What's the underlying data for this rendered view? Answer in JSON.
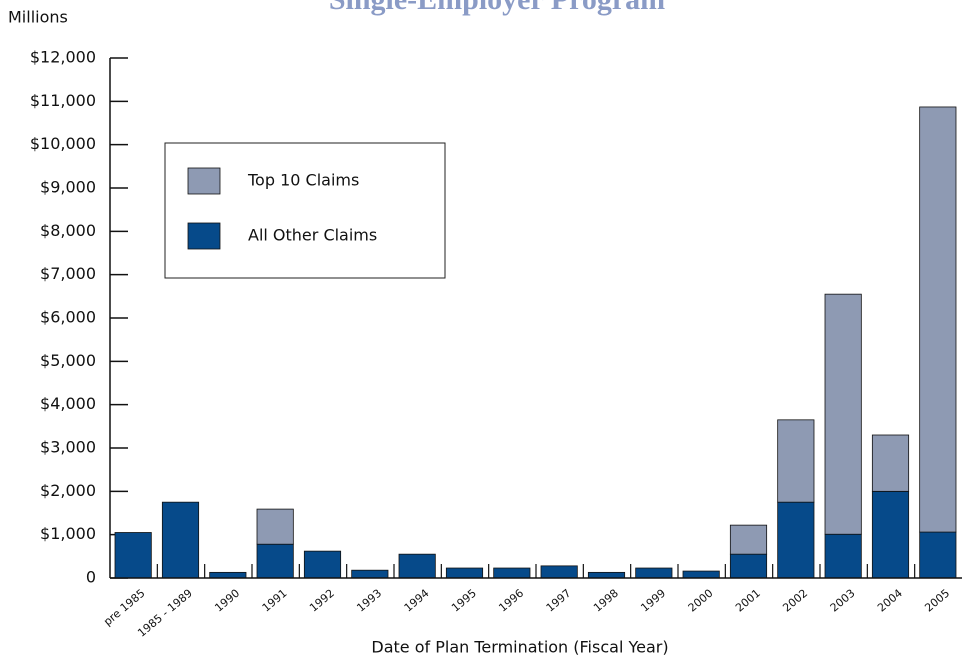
{
  "chart_data": {
    "type": "stacked-bar",
    "title": "Single-Employer Program",
    "y_label": "Millions",
    "x_label": "Date of Plan Termination (Fiscal Year)",
    "categories": [
      "pre 1985",
      "1985 - 1989",
      "1990",
      "1991",
      "1992",
      "1993",
      "1994",
      "1995",
      "1996",
      "1997",
      "1998",
      "1999",
      "2000",
      "2001",
      "2002",
      "2003",
      "2004",
      "2005"
    ],
    "series": [
      {
        "name": "Top 10 Claims",
        "color": "#8e9ab3",
        "values": [
          0,
          0,
          0,
          810,
          0,
          0,
          0,
          0,
          0,
          0,
          0,
          0,
          0,
          670,
          1900,
          5540,
          1300,
          9810
        ]
      },
      {
        "name": "All Other Claims",
        "color": "#064a8a",
        "values": [
          1050,
          1750,
          130,
          780,
          620,
          180,
          550,
          230,
          230,
          280,
          130,
          230,
          160,
          550,
          1750,
          1010,
          2000,
          1060
        ]
      }
    ],
    "ylim": [
      0,
      12000
    ],
    "yticks": [
      0,
      {
        "value": 1000,
        "label": "$1,000"
      },
      {
        "value": 2000,
        "label": "$2,000"
      },
      {
        "value": 3000,
        "label": "$3,000"
      },
      {
        "value": 4000,
        "label": "$4,000"
      },
      {
        "value": 5000,
        "label": "$5,000"
      },
      {
        "value": 6000,
        "label": "$6,000"
      },
      {
        "value": 7000,
        "label": "$7,000"
      },
      {
        "value": 8000,
        "label": "$8,000"
      },
      {
        "value": 9000,
        "label": "$9,000"
      },
      {
        "value": 10000,
        "label": "$10,000"
      },
      {
        "value": 11000,
        "label": "$11,000"
      },
      {
        "value": 12000,
        "label": "$12,000"
      }
    ],
    "legend": "upper left"
  }
}
